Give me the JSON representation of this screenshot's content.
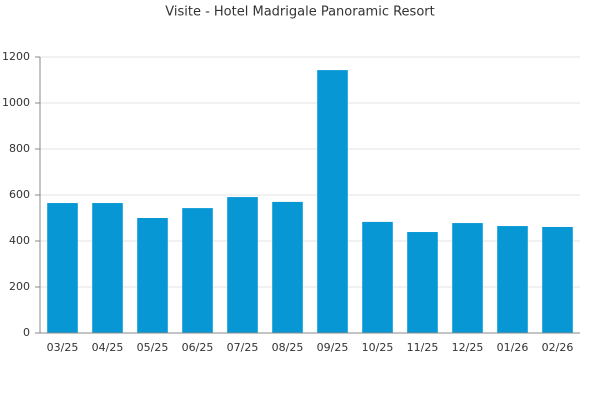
{
  "chart_data": {
    "type": "bar",
    "title": "Visite - Hotel Madrigale Panoramic Resort",
    "categories": [
      "03/25",
      "04/25",
      "05/25",
      "06/25",
      "07/25",
      "08/25",
      "09/25",
      "10/25",
      "11/25",
      "12/25",
      "01/26",
      "02/26"
    ],
    "values": [
      565,
      565,
      500,
      543,
      591,
      570,
      1143,
      483,
      439,
      478,
      465,
      461
    ],
    "color": "#0797d5",
    "ylim": [
      0,
      1200
    ],
    "yticks": [
      0,
      200,
      400,
      600,
      800,
      1000,
      1200
    ],
    "grid": true
  }
}
